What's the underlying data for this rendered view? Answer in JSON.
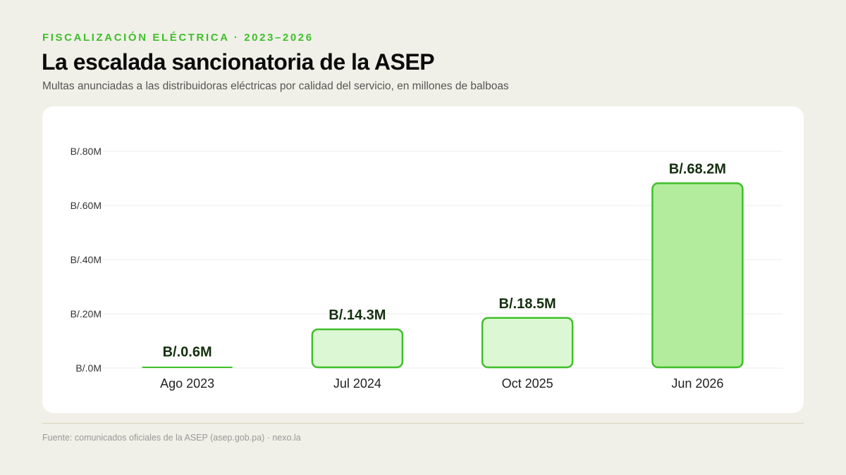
{
  "header": {
    "kicker": "FISCALIZACIÓN ELÉCTRICA · 2023–2026",
    "title": "La escalada sancionatoria de la ASEP",
    "subtitle": "Multas anunciadas a las distribuidoras eléctricas por calidad del servicio, en millones de balboas"
  },
  "footer": {
    "source": "Fuente: comunicados oficiales de la ASEP (asep.gob.pa) · nexo.la"
  },
  "colors": {
    "accent": "#3fbf2a",
    "bar_fill_light": "#dcf7d4",
    "bar_fill_strong": "#b2ec9c",
    "bar_stroke": "#3fbf2a",
    "value_label": "#14300f"
  },
  "chart_data": {
    "type": "bar",
    "categories": [
      "Ago 2023",
      "Jul 2024",
      "Oct 2025",
      "Jun 2026"
    ],
    "values": [
      0.6,
      14.3,
      18.5,
      68.2
    ],
    "value_labels": [
      "B/.0.6M",
      "B/.14.3M",
      "B/.18.5M",
      "B/.68.2M"
    ],
    "ylim": [
      0,
      80
    ],
    "yticks": [
      0,
      20,
      40,
      60,
      80
    ],
    "ytick_labels": [
      "B/.0M",
      "B/.20M",
      "B/.40M",
      "B/.60M",
      "B/.80M"
    ],
    "grid": true,
    "highlight_category": "Jun 2026"
  }
}
